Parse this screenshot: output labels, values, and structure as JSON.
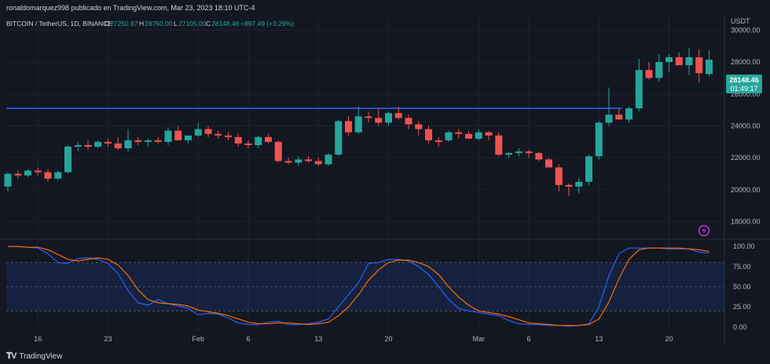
{
  "header": {
    "publish_line": "ronaldomarquez998 publicado en TradingView.com, Mar 23, 2023 18:10 UTC-4"
  },
  "legend": {
    "symbol": "BITCOIN / TetherUS, 1D, BINANCE",
    "o_label": "O",
    "o": "27250.97",
    "h_label": "H",
    "h": "28750.00",
    "l_label": "L",
    "l": "27105.00",
    "c_label": "C",
    "c": "28148.46",
    "change": "+897.49 (+3.29%)"
  },
  "price_axis": {
    "currency": "USDT",
    "last_price": "28148.46",
    "countdown": "01:49:17"
  },
  "footer": {
    "brand": "TradingView",
    "logo_icon": "tradingview-logo-icon"
  },
  "colors": {
    "background": "#131722",
    "up": "#26a69a",
    "down": "#ef5350",
    "hline": "#2962ff",
    "k_line": "#2962ff",
    "d_line": "#ff6d00",
    "band_fill": "#2962ff",
    "text": "#b2b5be"
  },
  "chart_data": [
    {
      "type": "candlestick",
      "ylim": [
        17000,
        31000
      ],
      "y_ticks": [
        "30000.00",
        "28000.00",
        "26000.00",
        "24000.00",
        "22000.00",
        "20000.00",
        "18000.00"
      ],
      "y_tick_values": [
        30000,
        28000,
        26000,
        24000,
        22000,
        20000,
        18000
      ],
      "x_tick_labels": [
        "16",
        "23",
        "Feb",
        "6",
        "13",
        "20",
        "Mar",
        "6",
        "13",
        "20"
      ],
      "x_tick_index": [
        3,
        10,
        19,
        24,
        31,
        38,
        47,
        52,
        59,
        66
      ],
      "horizontal_line": 25100,
      "candles": [
        [
          20200,
          21100,
          19900,
          21000
        ],
        [
          21000,
          21200,
          20700,
          20900
        ],
        [
          20900,
          21300,
          20800,
          21200
        ],
        [
          21200,
          21400,
          20900,
          21100
        ],
        [
          21100,
          21300,
          20500,
          20700
        ],
        [
          20700,
          21200,
          20600,
          21100
        ],
        [
          21100,
          22800,
          21000,
          22700
        ],
        [
          22700,
          23000,
          22400,
          22800
        ],
        [
          22800,
          23100,
          22500,
          22700
        ],
        [
          22700,
          23100,
          22600,
          23000
        ],
        [
          23000,
          23200,
          22700,
          22900
        ],
        [
          22900,
          23300,
          22500,
          22600
        ],
        [
          22600,
          23800,
          22400,
          23100
        ],
        [
          23100,
          23300,
          22800,
          23000
        ],
        [
          23000,
          23200,
          22700,
          23100
        ],
        [
          23100,
          23300,
          22900,
          23000
        ],
        [
          23000,
          23900,
          22800,
          23700
        ],
        [
          23700,
          24000,
          23100,
          23100
        ],
        [
          23100,
          23300,
          22900,
          23400
        ],
        [
          23400,
          24200,
          23300,
          23800
        ],
        [
          23800,
          24000,
          23300,
          23500
        ],
        [
          23500,
          23700,
          23200,
          23400
        ],
        [
          23400,
          23600,
          23100,
          23300
        ],
        [
          23300,
          23500,
          22700,
          22900
        ],
        [
          22900,
          23100,
          22600,
          22800
        ],
        [
          22800,
          23400,
          22600,
          23300
        ],
        [
          23300,
          23500,
          22900,
          23000
        ],
        [
          23000,
          23100,
          21700,
          21800
        ],
        [
          21800,
          22000,
          21600,
          21700
        ],
        [
          21700,
          22100,
          21500,
          21900
        ],
        [
          21900,
          22100,
          21700,
          21800
        ],
        [
          21800,
          22000,
          21500,
          21600
        ],
        [
          21600,
          22300,
          21500,
          22200
        ],
        [
          22200,
          24400,
          22100,
          24300
        ],
        [
          24300,
          24600,
          23400,
          23600
        ],
        [
          23600,
          25200,
          23500,
          24600
        ],
        [
          24600,
          24900,
          24200,
          24500
        ],
        [
          24500,
          25100,
          24000,
          24200
        ],
        [
          24200,
          24900,
          24000,
          24800
        ],
        [
          24800,
          25200,
          24400,
          24500
        ],
        [
          24500,
          24700,
          23800,
          24100
        ],
        [
          24100,
          24300,
          23400,
          23800
        ],
        [
          23800,
          24000,
          22900,
          23100
        ],
        [
          23100,
          23300,
          22700,
          23000
        ],
        [
          23100,
          23700,
          23000,
          23600
        ],
        [
          23600,
          23800,
          23200,
          23500
        ],
        [
          23500,
          23700,
          23200,
          23200
        ],
        [
          23200,
          23800,
          23100,
          23600
        ],
        [
          23600,
          23700,
          23100,
          23400
        ],
        [
          23400,
          23600,
          22100,
          22200
        ],
        [
          22200,
          22400,
          22000,
          22300
        ],
        [
          22300,
          22600,
          22100,
          22400
        ],
        [
          22400,
          22500,
          22000,
          22300
        ],
        [
          22300,
          22400,
          21800,
          21900
        ],
        [
          21900,
          22000,
          21400,
          21400
        ],
        [
          21400,
          21600,
          19900,
          20300
        ],
        [
          20300,
          20400,
          19600,
          20200
        ],
        [
          20200,
          20700,
          19800,
          20500
        ],
        [
          20500,
          22200,
          20300,
          22100
        ],
        [
          22100,
          24300,
          21900,
          24200
        ],
        [
          24200,
          26400,
          24000,
          24700
        ],
        [
          24700,
          25100,
          24500,
          24400
        ],
        [
          24400,
          25200,
          24200,
          25100
        ],
        [
          25100,
          28200,
          24900,
          27500
        ],
        [
          27500,
          28000,
          26900,
          27000
        ],
        [
          27000,
          28500,
          26800,
          28000
        ],
        [
          28000,
          28500,
          27400,
          28300
        ],
        [
          28300,
          28600,
          27900,
          27800
        ],
        [
          27800,
          28900,
          27200,
          28300
        ],
        [
          28300,
          28800,
          26700,
          27300
        ],
        [
          27250.97,
          28750,
          27105,
          28148.46
        ]
      ]
    },
    {
      "type": "line",
      "name": "stoch-rsi",
      "ylim": [
        -7,
        107
      ],
      "y_ticks": [
        "100.00",
        "75.00",
        "50.00",
        "25.00",
        "0.00"
      ],
      "y_tick_values": [
        100,
        75,
        50,
        25,
        0
      ],
      "bands": [
        20,
        80
      ],
      "series": [
        {
          "role": "k",
          "values": [
            100,
            100,
            99,
            98,
            91,
            80,
            79,
            85,
            86,
            84,
            79,
            66,
            45,
            30,
            27,
            34,
            29,
            26,
            23,
            15,
            17,
            16,
            11,
            5,
            3,
            3,
            6,
            7,
            3,
            3,
            4,
            6,
            10,
            25,
            40,
            55,
            79,
            80,
            84,
            84,
            82,
            75,
            65,
            50,
            34,
            23,
            20,
            18,
            16,
            14,
            8,
            4,
            3,
            3,
            2,
            2,
            1,
            2,
            4,
            25,
            64,
            91,
            98,
            98,
            98,
            98,
            97,
            97,
            97,
            93,
            92
          ]
        },
        {
          "role": "d",
          "values": [
            100,
            100,
            99,
            99,
            96,
            90,
            84,
            82,
            84,
            86,
            84,
            77,
            64,
            46,
            34,
            30,
            29,
            28,
            26,
            21,
            19,
            17,
            14,
            10,
            6,
            4,
            4,
            5,
            5,
            4,
            3,
            4,
            6,
            14,
            25,
            40,
            58,
            71,
            80,
            83,
            83,
            80,
            75,
            65,
            50,
            37,
            27,
            20,
            18,
            16,
            13,
            9,
            5,
            4,
            3,
            2,
            2,
            2,
            3,
            10,
            31,
            60,
            84,
            96,
            98,
            98,
            98,
            98,
            97,
            96,
            94
          ]
        }
      ]
    }
  ]
}
